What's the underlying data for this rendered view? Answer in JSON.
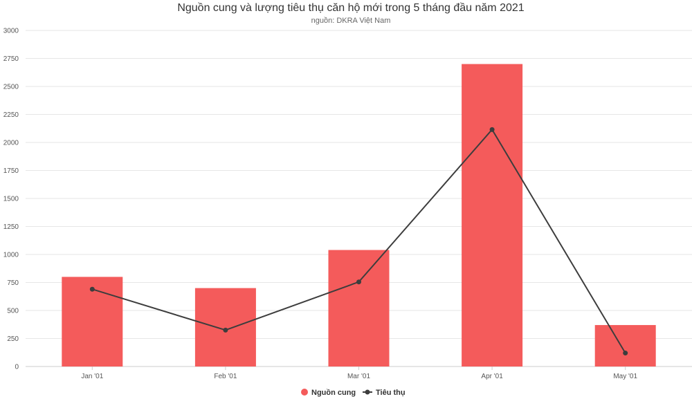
{
  "chart_data": {
    "type": "bar",
    "title": "Nguồn cung và lượng tiêu thụ căn hộ mới trong 5 tháng đầu năm 2021",
    "subtitle": "nguồn: DKRA Việt Nam",
    "categories": [
      "Jan '01",
      "Feb '01",
      "Mar '01",
      "Apr '01",
      "May '01"
    ],
    "series": [
      {
        "name": "Nguồn cung",
        "type": "bar",
        "color": "#f45b5b",
        "values": [
          800,
          700,
          1040,
          2700,
          370
        ]
      },
      {
        "name": "Tiêu thụ",
        "type": "line",
        "color": "#3d3d3d",
        "values": [
          690,
          325,
          755,
          2115,
          120
        ]
      }
    ],
    "y_ticks": [
      "0",
      "250",
      "500",
      "750",
      "1000",
      "1250",
      "1500",
      "1750",
      "2000",
      "2250",
      "2500",
      "2750",
      "3000"
    ],
    "ylim": [
      0,
      3000
    ],
    "grid": true,
    "legend_position": "bottom-center"
  }
}
